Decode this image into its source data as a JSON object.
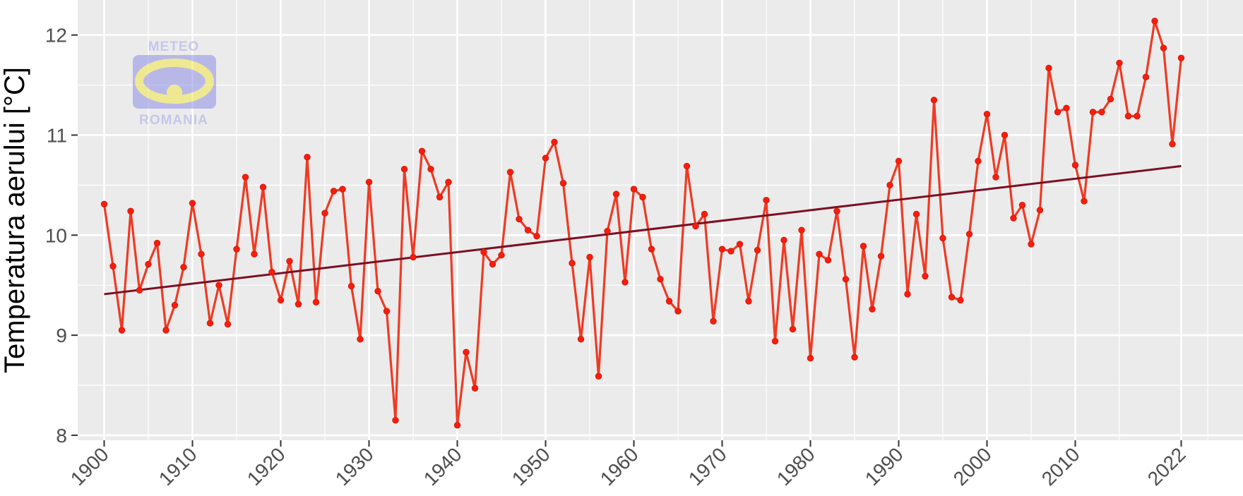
{
  "chart_data": {
    "type": "line",
    "title": "",
    "xlabel": "",
    "ylabel": "Temperatura aerului [°C]",
    "xlim": [
      1897,
      2029
    ],
    "ylim": [
      7.95,
      12.35
    ],
    "grid": true,
    "x_ticks": [
      1900,
      1910,
      1920,
      1930,
      1940,
      1950,
      1960,
      1970,
      1980,
      1990,
      2000,
      2010,
      2022
    ],
    "x_tick_labels": [
      "1900",
      "1910",
      "1920",
      "1930",
      "1940",
      "1950",
      "1960",
      "1970",
      "1980",
      "1990",
      "2000",
      "2010",
      "2022"
    ],
    "y_ticks": [
      8,
      9,
      10,
      11,
      12
    ],
    "y_tick_labels": [
      "8",
      "9",
      "10",
      "11",
      "12"
    ],
    "colors": {
      "series": "#ee3b24",
      "trend": "#7b0f23",
      "panel": "#ebebeb",
      "grid": "#ffffff"
    },
    "series": [
      {
        "type": "line+points",
        "x_start": 1900,
        "x_end": 2022,
        "values": [
          10.31,
          9.69,
          9.05,
          10.24,
          9.45,
          9.71,
          9.92,
          9.05,
          9.3,
          9.68,
          10.32,
          9.81,
          9.12,
          9.5,
          9.11,
          9.86,
          10.58,
          9.81,
          10.48,
          9.63,
          9.35,
          9.74,
          9.31,
          10.78,
          9.33,
          10.22,
          10.44,
          10.46,
          9.49,
          8.96,
          10.53,
          9.44,
          9.24,
          8.15,
          10.66,
          9.78,
          10.84,
          10.66,
          10.38,
          10.53,
          8.1,
          8.83,
          8.47,
          9.83,
          9.71,
          9.8,
          10.63,
          10.16,
          10.05,
          9.99,
          10.77,
          10.93,
          10.52,
          9.72,
          8.96,
          9.78,
          8.59,
          10.04,
          10.41,
          9.53,
          10.46,
          10.38,
          9.86,
          9.56,
          9.34,
          9.24,
          10.69,
          10.09,
          10.21,
          9.14,
          9.86,
          9.84,
          9.91,
          9.34,
          9.85,
          10.35,
          8.94,
          9.95,
          9.06,
          10.05,
          8.77,
          9.81,
          9.75,
          10.24,
          9.56,
          8.78,
          9.89,
          9.26,
          9.79,
          10.5,
          10.74,
          9.41,
          10.21,
          9.59,
          11.35,
          9.97,
          9.38,
          9.35,
          10.01,
          10.74,
          11.21,
          10.58,
          11.0,
          10.17,
          10.3,
          9.91,
          10.25,
          11.67,
          11.23,
          11.27,
          10.7,
          10.34,
          11.23,
          11.23,
          11.36,
          11.72,
          11.19,
          11.19,
          11.58,
          12.14,
          11.87,
          10.91,
          11.77
        ]
      },
      {
        "type": "trend",
        "x": [
          1900,
          2022
        ],
        "values": [
          9.41,
          10.69
        ]
      }
    ],
    "logo": {
      "top_text": "METEO",
      "bottom_text": "ROMANIA"
    }
  }
}
